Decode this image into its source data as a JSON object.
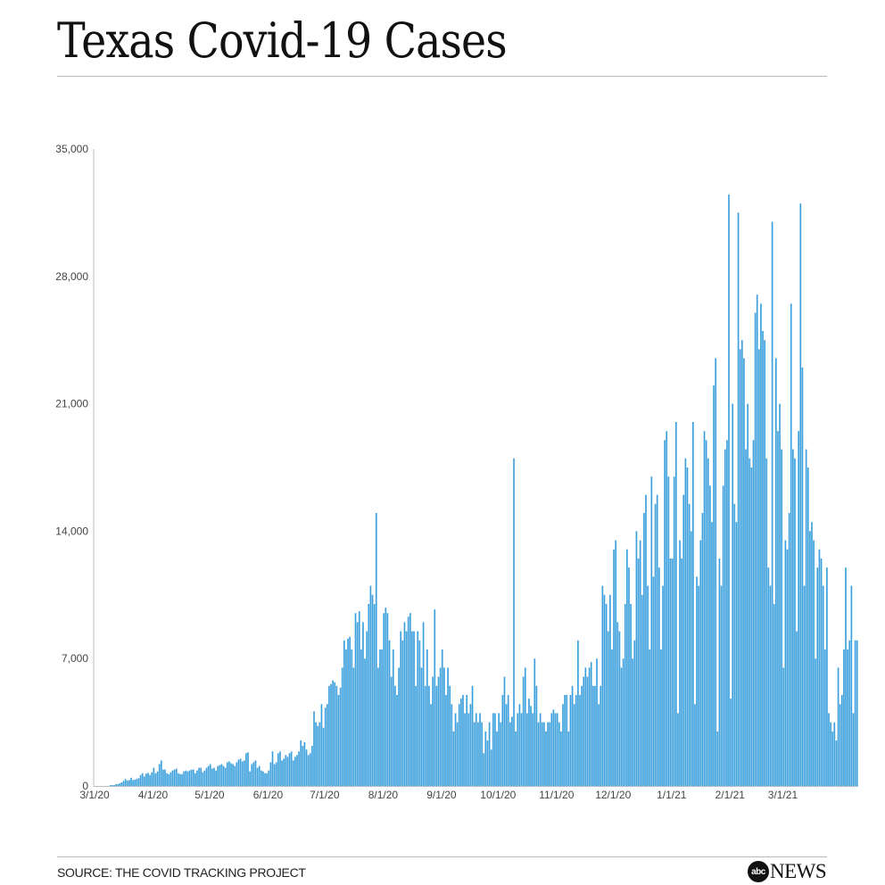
{
  "title": "Texas Covid-19 Cases",
  "source": "SOURCE: THE COVID TRACKING PROJECT",
  "logo": {
    "circle_text": "abc",
    "text": "NEWS"
  },
  "chart_data": {
    "type": "bar",
    "title": "Texas Covid-19 Cases",
    "xlabel": "",
    "ylabel": "",
    "ylim": [
      0,
      35000
    ],
    "yticks": [
      0,
      7000,
      14000,
      21000,
      28000,
      35000
    ],
    "ytick_labels": [
      "0",
      "7,000",
      "14,000",
      "21,000",
      "28,000",
      "35,000"
    ],
    "xticks": [
      {
        "label": "3/1/20",
        "index": 0
      },
      {
        "label": "4/1/20",
        "index": 31
      },
      {
        "label": "5/1/20",
        "index": 61
      },
      {
        "label": "6/1/20",
        "index": 92
      },
      {
        "label": "7/1/20",
        "index": 122
      },
      {
        "label": "8/1/20",
        "index": 153
      },
      {
        "label": "9/1/20",
        "index": 184
      },
      {
        "label": "10/1/20",
        "index": 214
      },
      {
        "label": "11/1/20",
        "index": 245
      },
      {
        "label": "12/1/20",
        "index": 275
      },
      {
        "label": "1/1/21",
        "index": 306
      },
      {
        "label": "2/1/21",
        "index": 337
      },
      {
        "label": "3/1/21",
        "index": 365
      }
    ],
    "color": "#3a9fdc",
    "grid": false,
    "start_date": "2020-03-01",
    "values": [
      0,
      0,
      0,
      0,
      0,
      0,
      0,
      0,
      50,
      50,
      50,
      100,
      100,
      150,
      200,
      280,
      380,
      300,
      320,
      450,
      320,
      350,
      380,
      430,
      600,
      700,
      520,
      680,
      720,
      600,
      750,
      1000,
      700,
      800,
      1200,
      1400,
      900,
      900,
      700,
      650,
      750,
      850,
      900,
      950,
      700,
      650,
      650,
      800,
      850,
      800,
      850,
      900,
      900,
      700,
      850,
      1000,
      1000,
      750,
      850,
      1000,
      1100,
      1200,
      950,
      1000,
      850,
      1100,
      1150,
      1200,
      1100,
      1000,
      1300,
      1350,
      1250,
      1200,
      1100,
      1300,
      1450,
      1500,
      1350,
      1400,
      1800,
      1850,
      800,
      1200,
      1300,
      1400,
      1000,
      1100,
      850,
      800,
      700,
      700,
      850,
      1300,
      1900,
      1200,
      1300,
      1800,
      1900,
      1400,
      1500,
      1700,
      1600,
      1800,
      1900,
      1400,
      1600,
      1700,
      1900,
      2500,
      2200,
      2400,
      2000,
      1700,
      1800,
      2200,
      4100,
      3500,
      3300,
      3500,
      4500,
      3200,
      4300,
      4500,
      5500,
      5600,
      5800,
      5700,
      5500,
      5000,
      5400,
      6500,
      8000,
      7500,
      8100,
      8200,
      7500,
      6500,
      9500,
      9000,
      9600,
      7500,
      9000,
      7000,
      8500,
      10000,
      11000,
      10500,
      10000,
      15000,
      6500,
      7500,
      7500,
      9500,
      9800,
      9500,
      8000,
      6000,
      7500,
      5500,
      5000,
      6500,
      8500,
      8000,
      9000,
      8500,
      9300,
      9500,
      8500,
      8500,
      5500,
      8500,
      8000,
      6500,
      9000,
      5500,
      7500,
      5500,
      4500,
      6000,
      9700,
      5500,
      6000,
      6500,
      7500,
      6500,
      5000,
      6500,
      5500,
      4500,
      3000,
      4000,
      3500,
      4500,
      4800,
      5000,
      4000,
      5000,
      4000,
      4500,
      5500,
      3500,
      4000,
      3500,
      4000,
      3500,
      1800,
      3000,
      2500,
      3500,
      2000,
      4000,
      4000,
      3000,
      4000,
      3500,
      5000,
      6000,
      4500,
      5000,
      3500,
      3800,
      18000,
      3000,
      4000,
      4500,
      4000,
      6000,
      6500,
      4000,
      4800,
      4400,
      4000,
      7000,
      5500,
      3500,
      4000,
      3500,
      3500,
      3000,
      3500,
      3500,
      4000,
      4200,
      4000,
      4000,
      3500,
      3000,
      4500,
      5000,
      5000,
      3000,
      5000,
      5500,
      4500,
      5000,
      8000,
      5000,
      5500,
      6000,
      6500,
      6000,
      6500,
      6800,
      5500,
      5500,
      7000,
      4500,
      5500,
      11000,
      10500,
      10000,
      8500,
      10500,
      7500,
      13000,
      13500,
      9000,
      8500,
      6500,
      7000,
      10000,
      13000,
      12000,
      10000,
      7000,
      8000,
      14000,
      12500,
      13500,
      10500,
      15000,
      16000,
      11000,
      7500,
      17000,
      11500,
      15500,
      16000,
      12000,
      7500,
      11000,
      19000,
      19500,
      17000,
      12500,
      12500,
      17000,
      20000,
      4000,
      13500,
      12500,
      16000,
      18000,
      17500,
      15500,
      14000,
      20000,
      4500,
      11500,
      11000,
      13500,
      15000,
      19500,
      19000,
      18000,
      16500,
      14500,
      22000,
      23500,
      3000,
      12500,
      11000,
      16500,
      18500,
      19000,
      32500,
      4800,
      21000,
      15500,
      14500,
      31500,
      24000,
      24500,
      23500,
      18500,
      21000,
      18000,
      17500,
      19000,
      26000,
      27000,
      24000,
      26500,
      25000,
      24500,
      18000,
      12000,
      11000,
      31000,
      10000,
      23500,
      19500,
      21000,
      18500,
      6500,
      13500,
      13000,
      15000,
      26500,
      18500,
      18000,
      8500,
      19500,
      32000,
      23000,
      11000,
      18500,
      17500,
      14000,
      14500,
      13500,
      7000,
      12000,
      13000,
      12500,
      11000,
      7500,
      12000,
      4000,
      3500,
      3000,
      3500,
      2500,
      6500,
      4500,
      5000,
      7500,
      12000,
      7500,
      8000,
      11000,
      4000,
      8000,
      8000
    ]
  }
}
